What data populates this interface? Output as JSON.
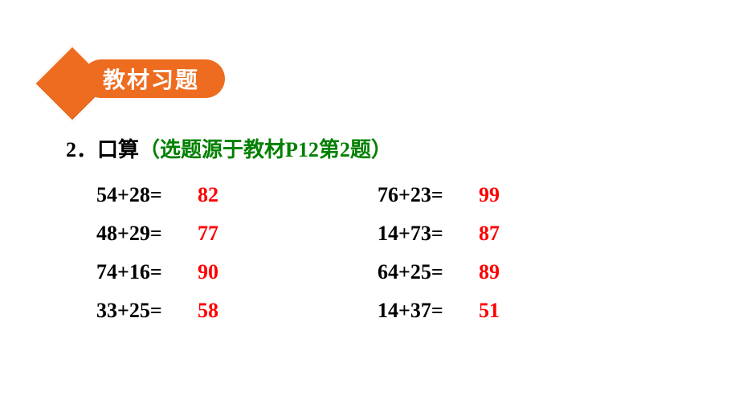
{
  "badge": {
    "label": "教材习题"
  },
  "question": {
    "number": "2．",
    "title": "口算",
    "source": "（选题源于教材P12第2题）"
  },
  "problems": {
    "rows": [
      {
        "left": {
          "expr": "54+28=",
          "ans": "82"
        },
        "right": {
          "expr": "76+23=",
          "ans": "99"
        }
      },
      {
        "left": {
          "expr": "48+29=",
          "ans": "77"
        },
        "right": {
          "expr": "14+73=",
          "ans": "87"
        }
      },
      {
        "left": {
          "expr": "74+16=",
          "ans": "90"
        },
        "right": {
          "expr": "64+25=",
          "ans": "89"
        }
      },
      {
        "left": {
          "expr": "33+25=",
          "ans": "58"
        },
        "right": {
          "expr": "14+37=",
          "ans": "51"
        }
      }
    ]
  },
  "styles": {
    "badge_bg": "#ed6c1f",
    "badge_text": "#ffffff",
    "question_color": "#000000",
    "source_color": "#008000",
    "expr_color": "#000000",
    "ans_color": "#ff0000",
    "expr_fontsize": 26,
    "ans_fontsize": 26,
    "badge_fontsize": 28
  }
}
